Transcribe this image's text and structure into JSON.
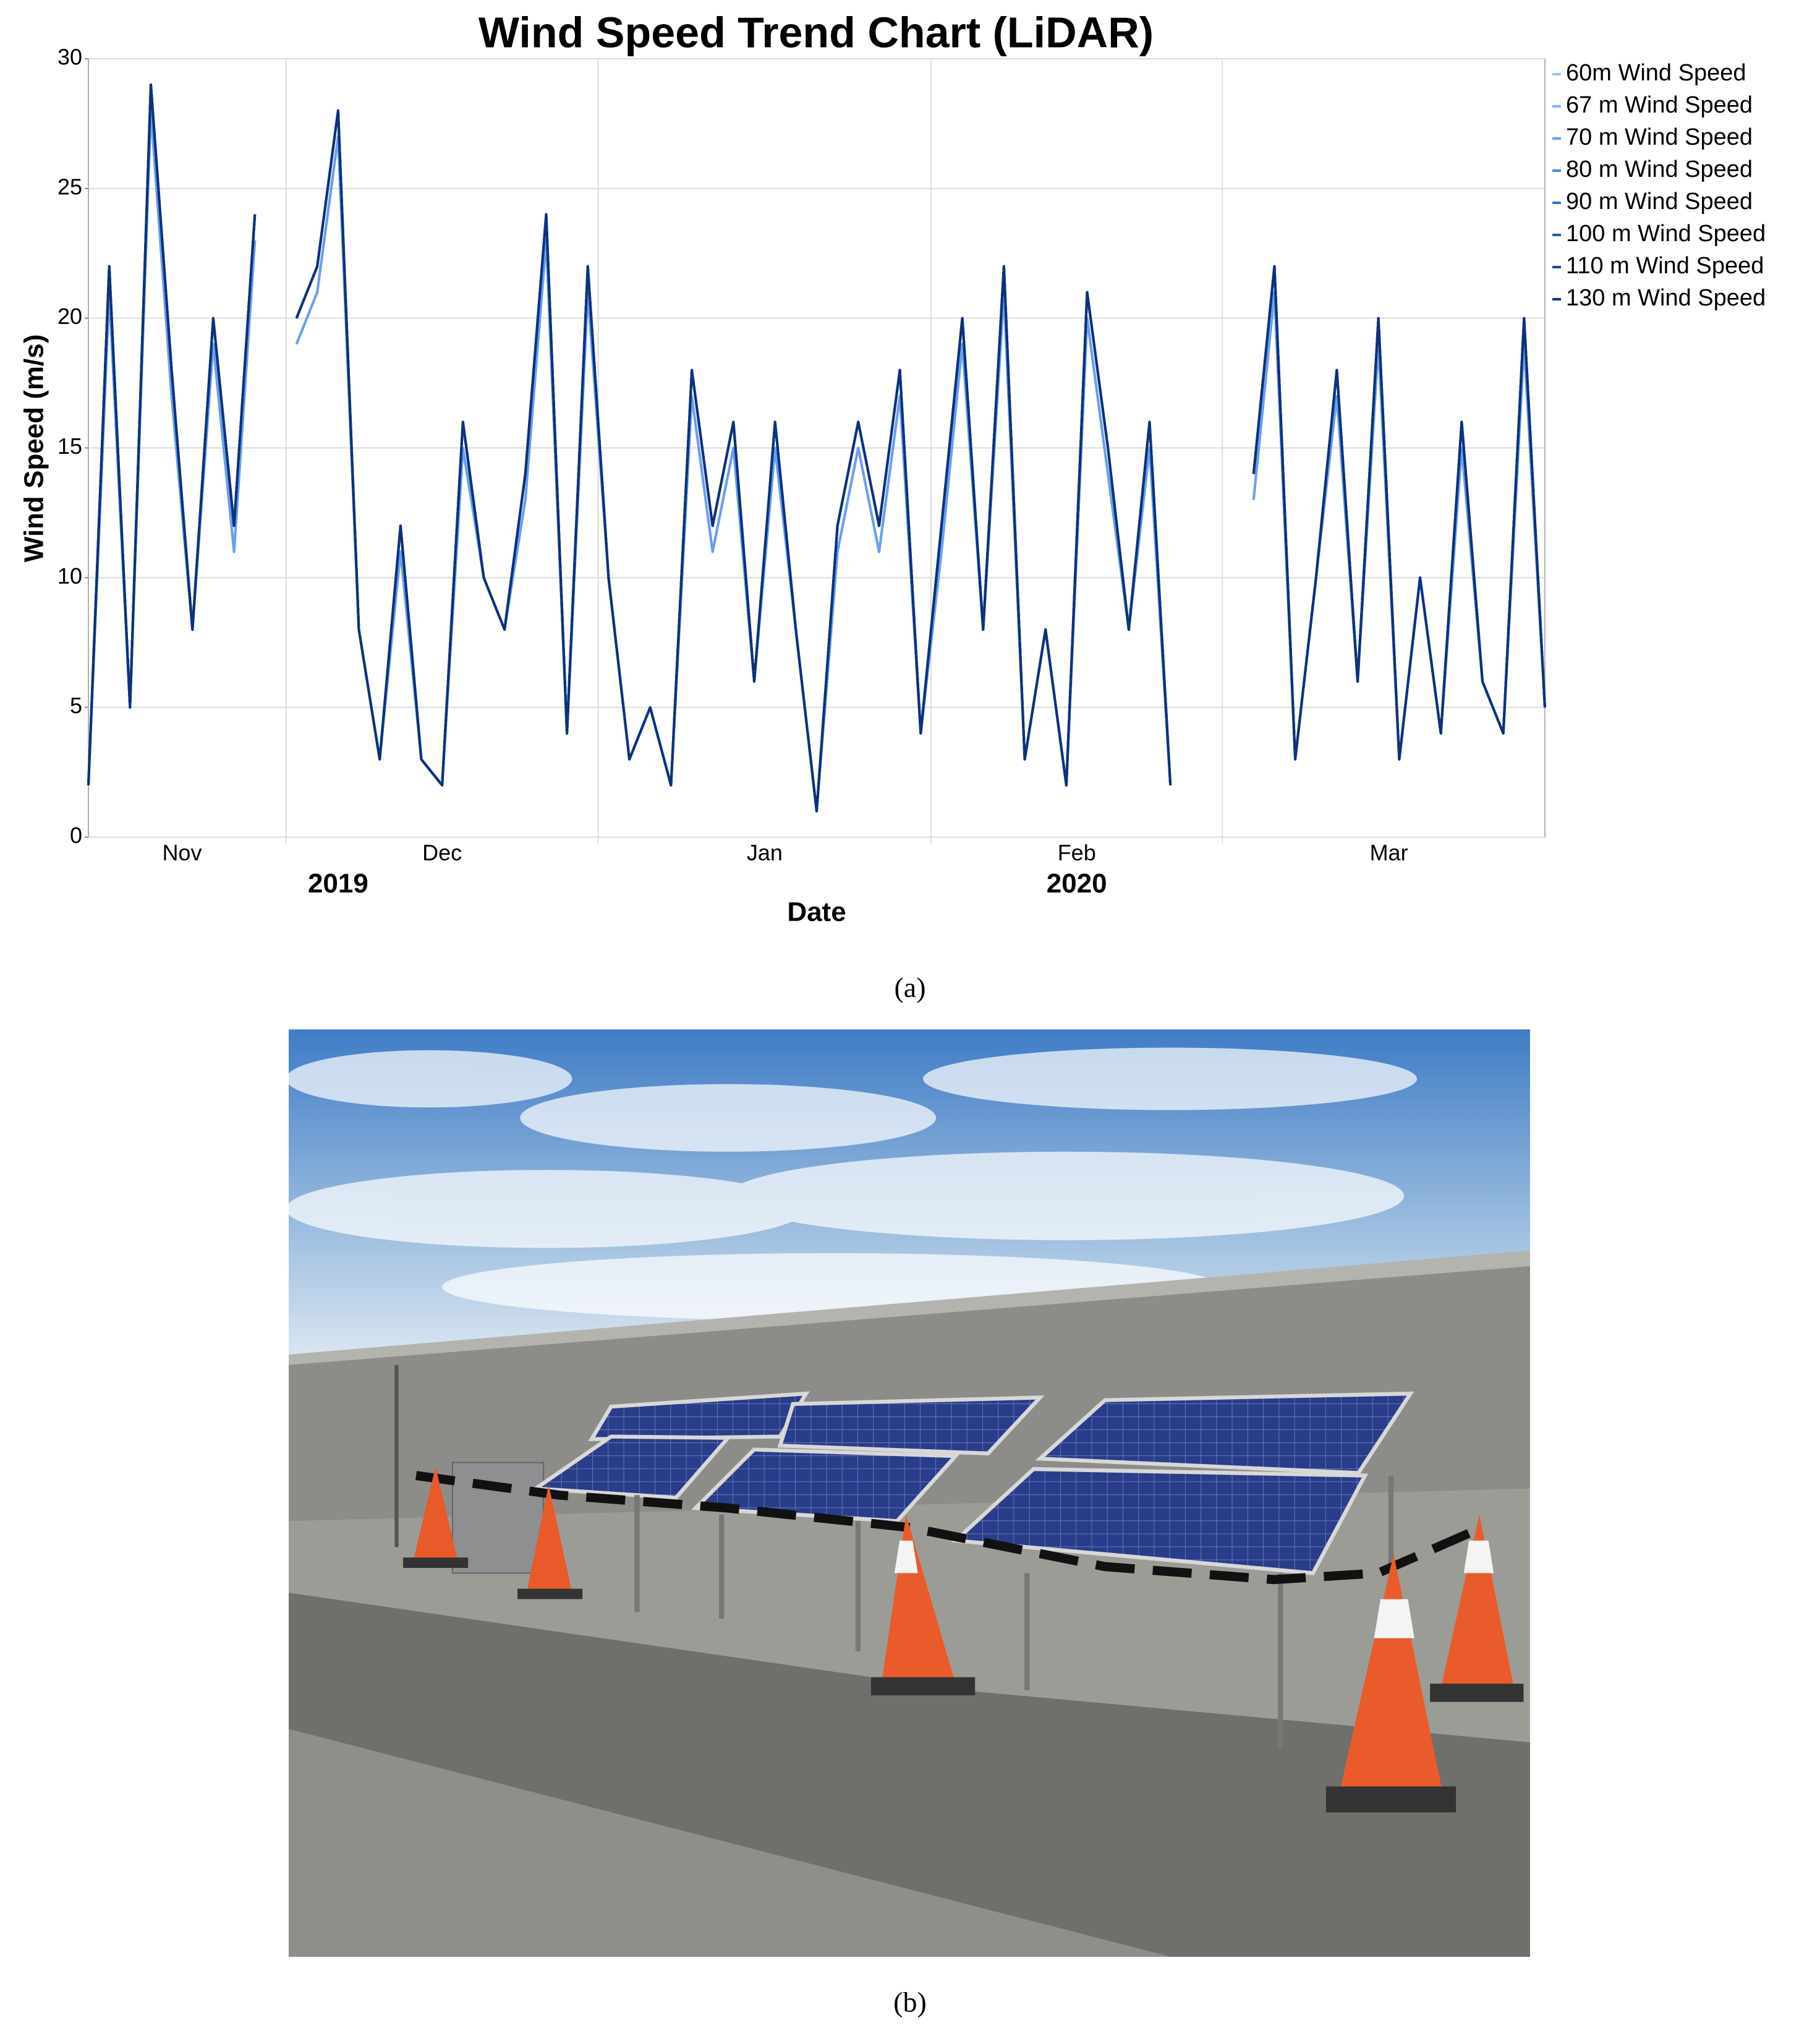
{
  "chart_data": {
    "type": "line",
    "title": "Wind Speed Trend Chart (LiDAR)",
    "x_label": "Date",
    "y_label": "Wind Speed (m/s)",
    "caption": "(a)",
    "categories": [
      "Nov",
      "Nov",
      "Nov",
      "Nov",
      "Nov",
      "Nov",
      "Nov",
      "Nov",
      "Nov",
      "Nov",
      "Dec",
      "Dec",
      "Dec",
      "Dec",
      "Dec",
      "Dec",
      "Dec",
      "Dec",
      "Dec",
      "Dec",
      "Dec",
      "Dec",
      "Dec",
      "Dec",
      "Dec",
      "Jan",
      "Jan",
      "Jan",
      "Jan",
      "Jan",
      "Jan",
      "Jan",
      "Jan",
      "Jan",
      "Jan",
      "Jan",
      "Jan",
      "Jan",
      "Jan",
      "Jan",
      "Jan",
      "Feb",
      "Feb",
      "Feb",
      "Feb",
      "Feb",
      "Feb",
      "Feb",
      "Feb",
      "Feb",
      "Feb",
      "Feb",
      "Feb",
      "Feb",
      "Feb",
      "Mar",
      "Mar",
      "Mar",
      "Mar",
      "Mar",
      "Mar",
      "Mar",
      "Mar",
      "Mar",
      "Mar",
      "Mar",
      "Mar",
      "Mar",
      "Mar",
      "Mar",
      "Mar"
    ],
    "years": [
      "2019",
      "2019",
      "2019",
      "2019",
      "2019",
      "2019",
      "2019",
      "2019",
      "2019",
      "2019",
      "2019",
      "2019",
      "2019",
      "2019",
      "2019",
      "2019",
      "2019",
      "2019",
      "2019",
      "2019",
      "2019",
      "2019",
      "2019",
      "2019",
      "2019",
      "2020",
      "2020",
      "2020",
      "2020",
      "2020",
      "2020",
      "2020",
      "2020",
      "2020",
      "2020",
      "2020",
      "2020",
      "2020",
      "2020",
      "2020",
      "2020",
      "2020",
      "2020",
      "2020",
      "2020",
      "2020",
      "2020",
      "2020",
      "2020",
      "2020",
      "2020",
      "2020",
      "2020",
      "2020",
      "2020",
      "2020",
      "2020",
      "2020",
      "2020",
      "2020",
      "2020",
      "2020",
      "2020",
      "2020",
      "2020",
      "2020",
      "2020",
      "2020",
      "2020",
      "2020",
      "2020"
    ],
    "ylim": [
      0,
      30
    ],
    "yticks": [
      0,
      5,
      10,
      15,
      20,
      25,
      30
    ],
    "grid": true,
    "legend": "right",
    "series": [
      {
        "name": "60m Wind Speed",
        "color": "#9cc2f2",
        "values": [
          2,
          21,
          5,
          28,
          17,
          8,
          19,
          11,
          23,
          null,
          19,
          21,
          27,
          8,
          3,
          11,
          3,
          2,
          15,
          10,
          8,
          13,
          23,
          4,
          21,
          10,
          3,
          5,
          2,
          17,
          11,
          15,
          6,
          15,
          8,
          1,
          11,
          15,
          11,
          17,
          4,
          11,
          19,
          8,
          21,
          3,
          8,
          2,
          20,
          14,
          8,
          15,
          2,
          null,
          null,
          null,
          13,
          21,
          3,
          10,
          17,
          6,
          19,
          3,
          10,
          4,
          15,
          6,
          4,
          19,
          5
        ]
      },
      {
        "name": "67 m Wind Speed",
        "color": "#84b2f0",
        "values": [
          2,
          21,
          5,
          28,
          17,
          8,
          19,
          11,
          23,
          null,
          19,
          21,
          27,
          8,
          3,
          11,
          3,
          2,
          15,
          10,
          8,
          13,
          23,
          4,
          21,
          10,
          3,
          5,
          2,
          17,
          11,
          15,
          6,
          15,
          8,
          1,
          11,
          15,
          11,
          17,
          4,
          11,
          19,
          8,
          21,
          3,
          8,
          2,
          20,
          14,
          8,
          15,
          2,
          null,
          null,
          null,
          13,
          21,
          3,
          10,
          17,
          6,
          19,
          3,
          10,
          4,
          15,
          6,
          4,
          19,
          5
        ]
      },
      {
        "name": "70 m Wind Speed",
        "color": "#6a9eee",
        "values": [
          2,
          21,
          5,
          28,
          17,
          8,
          19,
          11,
          23,
          null,
          19,
          21,
          27,
          8,
          3,
          11,
          3,
          2,
          15,
          10,
          8,
          13,
          23,
          4,
          21,
          10,
          3,
          5,
          2,
          17,
          11,
          15,
          6,
          15,
          8,
          1,
          11,
          15,
          11,
          17,
          4,
          11,
          19,
          8,
          21,
          3,
          8,
          2,
          20,
          14,
          8,
          15,
          2,
          null,
          null,
          null,
          13,
          21,
          3,
          10,
          17,
          6,
          19,
          3,
          10,
          4,
          15,
          6,
          4,
          19,
          5
        ]
      },
      {
        "name": "80 m Wind Speed",
        "color": "#4c86e0",
        "values": [
          2,
          22,
          5,
          29,
          18,
          8,
          20,
          12,
          24,
          null,
          20,
          22,
          28,
          8,
          3,
          12,
          3,
          2,
          16,
          10,
          8,
          14,
          24,
          4,
          22,
          10,
          3,
          5,
          2,
          18,
          12,
          16,
          6,
          16,
          8,
          1,
          12,
          16,
          12,
          18,
          4,
          12,
          20,
          8,
          22,
          3,
          8,
          2,
          21,
          15,
          8,
          16,
          2,
          null,
          null,
          null,
          14,
          22,
          3,
          10,
          18,
          6,
          20,
          3,
          10,
          4,
          16,
          6,
          4,
          20,
          5
        ]
      },
      {
        "name": "90 m Wind Speed",
        "color": "#3470cc",
        "values": [
          2,
          22,
          5,
          29,
          18,
          8,
          20,
          12,
          24,
          null,
          20,
          22,
          28,
          8,
          3,
          12,
          3,
          2,
          16,
          10,
          8,
          14,
          24,
          4,
          22,
          10,
          3,
          5,
          2,
          18,
          12,
          16,
          6,
          16,
          8,
          1,
          12,
          16,
          12,
          18,
          4,
          12,
          20,
          8,
          22,
          3,
          8,
          2,
          21,
          15,
          8,
          16,
          2,
          null,
          null,
          null,
          14,
          22,
          3,
          10,
          18,
          6,
          20,
          3,
          10,
          4,
          16,
          6,
          4,
          20,
          5
        ]
      },
      {
        "name": "100 m Wind Speed",
        "color": "#225aae",
        "values": [
          2,
          22,
          5,
          29,
          18,
          8,
          20,
          12,
          24,
          null,
          20,
          22,
          28,
          8,
          3,
          12,
          3,
          2,
          16,
          10,
          8,
          14,
          24,
          4,
          22,
          10,
          3,
          5,
          2,
          18,
          12,
          16,
          6,
          16,
          8,
          1,
          12,
          16,
          12,
          18,
          4,
          12,
          20,
          8,
          22,
          3,
          8,
          2,
          21,
          15,
          8,
          16,
          2,
          null,
          null,
          null,
          14,
          22,
          3,
          10,
          18,
          6,
          20,
          3,
          10,
          4,
          16,
          6,
          4,
          20,
          5
        ]
      },
      {
        "name": "110 m Wind Speed",
        "color": "#164494",
        "values": [
          2,
          22,
          5,
          29,
          18,
          8,
          20,
          12,
          24,
          null,
          20,
          22,
          28,
          8,
          3,
          12,
          3,
          2,
          16,
          10,
          8,
          14,
          24,
          4,
          22,
          10,
          3,
          5,
          2,
          18,
          12,
          16,
          6,
          16,
          8,
          1,
          12,
          16,
          12,
          18,
          4,
          12,
          20,
          8,
          22,
          3,
          8,
          2,
          21,
          15,
          8,
          16,
          2,
          null,
          null,
          null,
          14,
          22,
          3,
          10,
          18,
          6,
          20,
          3,
          10,
          4,
          16,
          6,
          4,
          20,
          5
        ]
      },
      {
        "name": "130 m Wind Speed",
        "color": "#0d327c",
        "values": [
          2,
          22,
          5,
          29,
          18,
          8,
          20,
          12,
          24,
          null,
          20,
          22,
          28,
          8,
          3,
          12,
          3,
          2,
          16,
          10,
          8,
          14,
          24,
          4,
          22,
          10,
          3,
          5,
          2,
          18,
          12,
          16,
          6,
          16,
          8,
          1,
          12,
          16,
          12,
          18,
          4,
          12,
          20,
          8,
          22,
          3,
          8,
          2,
          21,
          15,
          8,
          16,
          2,
          null,
          null,
          null,
          14,
          22,
          3,
          10,
          18,
          6,
          20,
          3,
          10,
          4,
          16,
          6,
          4,
          20,
          5
        ]
      }
    ]
  },
  "photo_caption": "(b)"
}
